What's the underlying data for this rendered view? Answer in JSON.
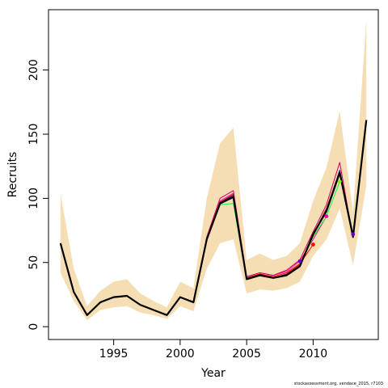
{
  "chart_data": {
    "type": "line",
    "xlabel": "Year",
    "ylabel": "Recruits",
    "xlim": [
      1990.1,
      2014.9
    ],
    "ylim": [
      -10,
      247
    ],
    "x_ticks": [
      1995,
      2000,
      2005,
      2010
    ],
    "y_ticks": [
      0,
      50,
      100,
      150,
      200
    ],
    "grid": false,
    "colors": {
      "band": "#F5DEB3",
      "main": "#000000",
      "peel1": "#FF0000",
      "peel2": "#FF00AA",
      "peel3": "#00FF44",
      "peel4": "#6600CC",
      "peel5": "#CC0066",
      "peel6": "#8B0000"
    },
    "confidence_band": {
      "x": [
        1991,
        1992,
        1993,
        1994,
        1995,
        1996,
        1997,
        1998,
        1999,
        2000,
        2001,
        2002,
        2003,
        2004,
        2005,
        2006,
        2007,
        2008,
        2009,
        2010,
        2011,
        2012,
        2013,
        2014
      ],
      "lower": [
        42,
        20,
        5,
        13,
        15,
        16,
        11,
        9,
        6,
        16,
        12,
        45,
        65,
        68,
        26,
        29,
        28,
        30,
        35,
        55,
        68,
        92,
        48,
        110
      ],
      "upper": [
        104,
        45,
        16,
        28,
        35,
        37,
        26,
        20,
        15,
        35,
        30,
        100,
        143,
        155,
        52,
        57,
        52,
        55,
        65,
        98,
        124,
        168,
        89,
        239
      ]
    },
    "series": [
      {
        "x": [
          1991,
          1992,
          1993,
          1994,
          1995,
          1996,
          1997,
          1998,
          1999,
          2000,
          2001,
          2002,
          2003,
          2004,
          2005,
          2006,
          2007,
          2008,
          2009,
          2010,
          2011,
          2012,
          2013,
          2014
        ],
        "values": [
          65,
          27,
          9,
          19,
          23,
          24,
          17,
          13,
          9,
          23,
          19,
          68,
          96,
          101,
          37,
          40,
          38,
          40,
          47,
          72,
          90,
          120,
          70,
          161
        ],
        "color": "#000000"
      },
      {
        "x": [
          1991,
          1992,
          1993,
          1994,
          1995,
          1996,
          1997,
          1998,
          1999,
          2000,
          2001,
          2002,
          2003,
          2004,
          2005,
          2006,
          2007,
          2008,
          2009,
          2010
        ],
        "values": [
          65,
          27,
          9,
          19,
          23,
          24,
          17,
          13,
          9,
          23,
          19,
          69,
          97,
          102,
          38,
          41,
          39,
          42,
          49,
          64
        ],
        "color": "#FF0000"
      },
      {
        "x": [
          1991,
          1992,
          1993,
          1994,
          1995,
          1996,
          1997,
          1998,
          1999,
          2000,
          2001,
          2002,
          2003,
          2004,
          2005,
          2006,
          2007,
          2008,
          2009,
          2010,
          2011
        ],
        "values": [
          65,
          27,
          9,
          19,
          23,
          24,
          17,
          13,
          9,
          23,
          19,
          69,
          98,
          104,
          39,
          42,
          40,
          43,
          51,
          68,
          86
        ],
        "color": "#FF00AA"
      },
      {
        "x": [
          1991,
          1992,
          1993,
          1994,
          1995,
          1996,
          1997,
          1998,
          1999,
          2000,
          2001,
          2002,
          2003,
          2004,
          2005,
          2006,
          2007,
          2008,
          2009,
          2010,
          2011,
          2012
        ],
        "values": [
          65,
          27,
          9,
          19,
          23,
          24,
          17,
          13,
          9,
          23,
          19,
          68,
          95,
          96,
          37,
          40,
          38,
          40,
          47,
          70,
          86,
          113
        ],
        "color": "#00FF44"
      },
      {
        "x": [
          1991,
          1992,
          1993,
          1994,
          1995,
          1996,
          1997,
          1998,
          1999,
          2000,
          2001,
          2002,
          2003,
          2004,
          2005,
          2006,
          2007,
          2008,
          2009,
          2010,
          2011,
          2012,
          2013
        ],
        "values": [
          65,
          27,
          9,
          19,
          23,
          24,
          17,
          13,
          9,
          23,
          19,
          68,
          97,
          102,
          37,
          40,
          38,
          41,
          48,
          71,
          91,
          122,
          72
        ],
        "color": "#6600CC"
      },
      {
        "x": [
          1991,
          1992,
          1993,
          1994,
          1995,
          1996,
          1997,
          1998,
          1999,
          2000,
          2001,
          2002,
          2003,
          2004,
          2005,
          2006,
          2007,
          2008,
          2009,
          2010,
          2011,
          2012,
          2013
        ],
        "values": [
          65,
          27,
          9,
          19,
          23,
          24,
          17,
          13,
          9,
          23,
          19,
          70,
          100,
          106,
          39,
          42,
          40,
          44,
          52,
          74,
          95,
          128,
          69
        ],
        "color": "#CC0066"
      },
      {
        "x": [
          1991,
          1992,
          1993,
          1994,
          1995,
          1996,
          1997,
          1998,
          1999,
          2000,
          2001,
          2002,
          2003,
          2004,
          2005,
          2006,
          2007,
          2008,
          2009,
          2010,
          2011,
          2012,
          2013
        ],
        "values": [
          65,
          27,
          9,
          19,
          23,
          24,
          17,
          13,
          9,
          23,
          19,
          68,
          97,
          103,
          38,
          41,
          38,
          41,
          48,
          72,
          92,
          121,
          71
        ],
        "color": "#8B0000"
      }
    ],
    "terminal_points": [
      {
        "x": 2009,
        "y": 51,
        "color": "#6600CC"
      },
      {
        "x": 2010,
        "y": 64,
        "color": "#FF0000"
      },
      {
        "x": 2011,
        "y": 86,
        "color": "#FF00AA"
      },
      {
        "x": 2012,
        "y": 113,
        "color": "#88EE00"
      },
      {
        "x": 2013,
        "y": 72,
        "color": "#6600CC"
      }
    ]
  },
  "footer": "stockassessment.org,  vendace_2015, r7103"
}
